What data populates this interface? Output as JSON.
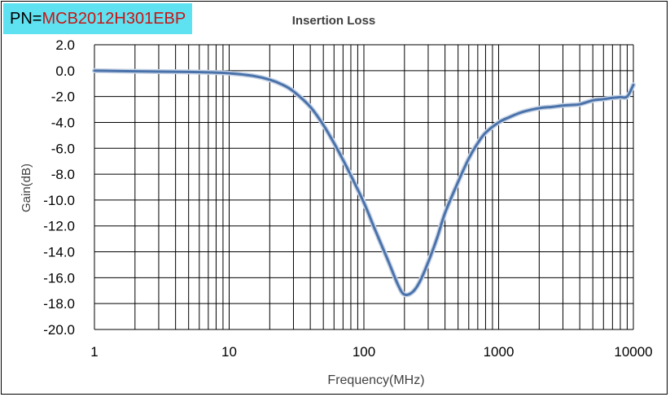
{
  "part_number": {
    "prefix": "PN=",
    "value": "MCB2012H301EBP"
  },
  "colors": {
    "pn_background": "#5ee1f0",
    "pn_value": "#c81414",
    "line": "#4a72aa"
  },
  "chart_data": {
    "type": "line",
    "title": "Insertion Loss",
    "xlabel": "Frequency(MHz)",
    "ylabel": "Gain(dB)",
    "x_scale": "log",
    "xlim": [
      1,
      10000
    ],
    "ylim": [
      -20,
      2
    ],
    "xticks": [
      "1",
      "10",
      "100",
      "1000",
      "10000"
    ],
    "yticks": [
      "2.0",
      "0.0",
      "-2.0",
      "-4.0",
      "-6.0",
      "-8.0",
      "-10.0",
      "-12.0",
      "-14.0",
      "-16.0",
      "-18.0",
      "-20.0"
    ],
    "grid": true,
    "legend": "none",
    "series": [
      {
        "x": [
          1,
          2,
          5,
          8,
          10,
          15,
          20,
          25,
          30,
          40,
          50,
          60,
          70,
          80,
          100,
          120,
          150,
          180,
          200,
          230,
          260,
          300,
          350,
          400,
          500,
          600,
          700,
          800,
          1000,
          1200,
          1500,
          2000,
          2500,
          3000,
          3500,
          4000,
          5000,
          6000,
          7000,
          8000,
          9000,
          10000
        ],
        "y": [
          0.0,
          -0.05,
          -0.1,
          -0.15,
          -0.2,
          -0.4,
          -0.7,
          -1.1,
          -1.6,
          -2.8,
          -4.2,
          -5.6,
          -6.9,
          -8.1,
          -10.2,
          -12.2,
          -14.6,
          -16.6,
          -17.3,
          -17.1,
          -16.3,
          -14.8,
          -12.9,
          -11.0,
          -8.6,
          -6.8,
          -5.6,
          -4.8,
          -4.0,
          -3.6,
          -3.2,
          -2.9,
          -2.8,
          -2.7,
          -2.65,
          -2.6,
          -2.3,
          -2.2,
          -2.1,
          -2.05,
          -2.0,
          -1.1
        ]
      }
    ]
  }
}
